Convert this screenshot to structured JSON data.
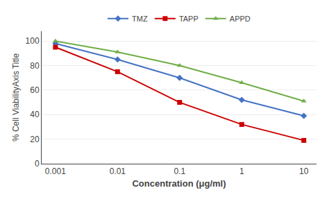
{
  "chart_data": {
    "type": "line",
    "x": [
      0.001,
      0.01,
      0.1,
      1,
      10
    ],
    "series": [
      {
        "name": "TMZ",
        "color": "#4472C4",
        "marker": "diamond",
        "values": [
          98,
          85,
          70,
          52,
          39
        ]
      },
      {
        "name": "TAPP",
        "color": "#CC0000",
        "marker": "square",
        "values": [
          95,
          75,
          50,
          32,
          19
        ]
      },
      {
        "name": "APPD",
        "color": "#70AD47",
        "marker": "triangle-up",
        "values": [
          100,
          91,
          80,
          66,
          51
        ]
      }
    ],
    "xlabel": "Concentration (μg/ml)",
    "ylabel": "% Cell ViabilityAxis Title",
    "log": "x",
    "xlim": [
      0.0006,
      16
    ],
    "xticks": [
      0.001,
      0.01,
      0.1,
      1,
      10
    ],
    "ylim": [
      0,
      108
    ],
    "yticks": [
      0,
      20,
      40,
      60,
      80,
      100
    ],
    "grid": "y",
    "legend": "top"
  }
}
